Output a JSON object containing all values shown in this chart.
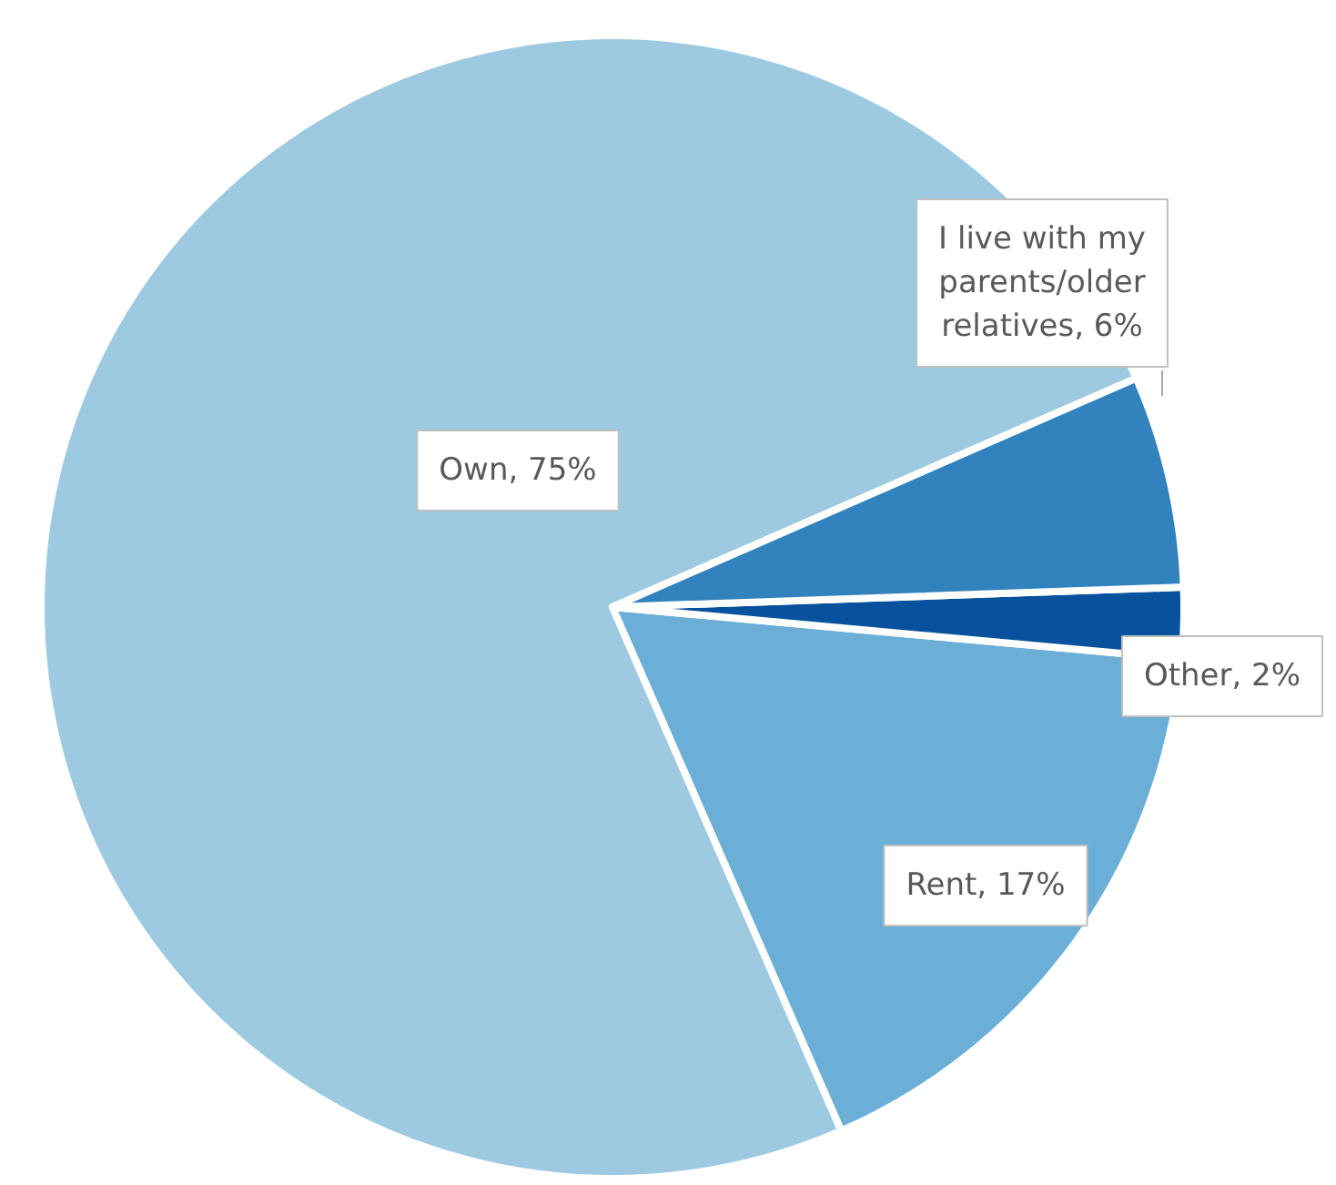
{
  "chart_data": {
    "type": "pie",
    "categories": [
      "Own",
      "Rent",
      "Other",
      "I live with my parents/older relatives"
    ],
    "values": [
      75,
      17,
      2,
      6
    ],
    "colors": [
      "#9ecae1",
      "#6baed6",
      "#08519c",
      "#3182bd"
    ],
    "value_labels": [
      "75%",
      "17%",
      "2%",
      "6%"
    ]
  }
}
